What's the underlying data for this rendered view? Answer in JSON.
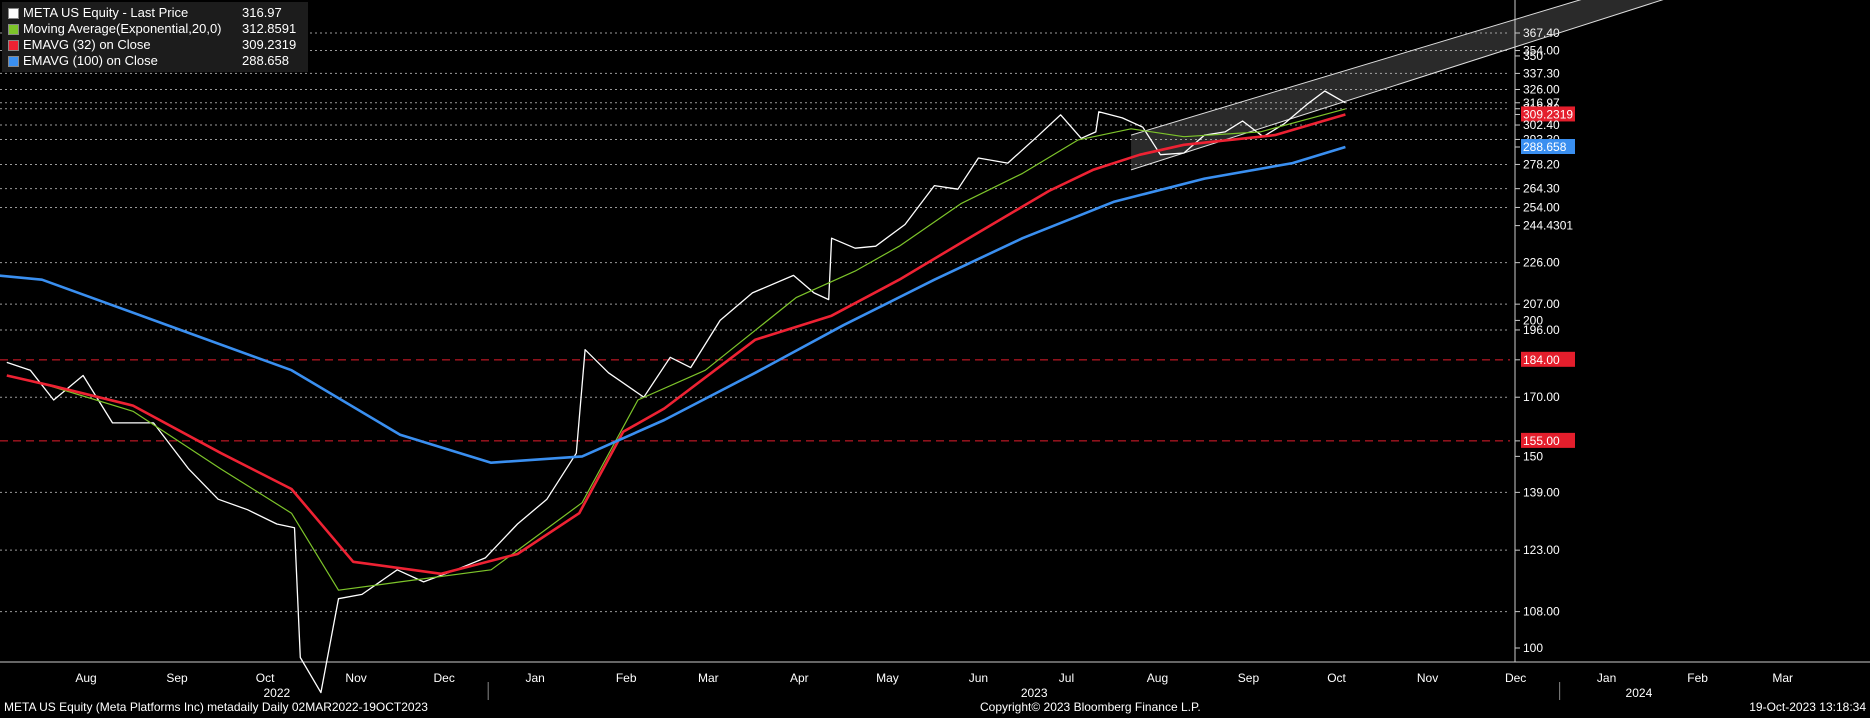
{
  "legend": [
    {
      "name": "META US Equity - Last Price",
      "value": "316.97",
      "color": "#ffffff"
    },
    {
      "name": "Moving Average(Exponential,20,0)",
      "value": "312.8591",
      "color": "#7dc42a"
    },
    {
      "name": "EMAVG (32)  on Close",
      "value": "309.2319",
      "color": "#ee2233"
    },
    {
      "name": "EMAVG (100)  on Close",
      "value": "288.658",
      "color": "#3a8ff0"
    }
  ],
  "footer": {
    "left": "META US Equity (Meta Platforms Inc) metadaily  Daily 02MAR2022-19OCT2023",
    "center": "Copyright© 2023 Bloomberg Finance L.P.",
    "right": "19-Oct-2023 13:18:34"
  },
  "chart_data": {
    "type": "line",
    "y_axis_labels": [
      "367.40",
      "354.00",
      "350",
      "337.30",
      "326.00",
      "316.97",
      "313.00",
      "309.2319",
      "302.40",
      "293.30",
      "288.658",
      "278.20",
      "264.30",
      "254.00",
      "244.4301",
      "226.00",
      "207.00",
      "200",
      "196.00",
      "184.00",
      "170.00",
      "155.00",
      "150",
      "139.00",
      "123.00",
      "108.00",
      "100"
    ],
    "y_axis_highlighted": [
      {
        "label": "184.00",
        "value": 184.0,
        "color": "#e41e2c"
      },
      {
        "label": "155.00",
        "value": 155.0,
        "color": "#e41e2c"
      },
      {
        "label": "309.2319",
        "value": 309.2319,
        "color": "#e41e2c"
      },
      {
        "label": "288.658",
        "value": 288.658,
        "color": "#3a8ff0"
      }
    ],
    "x_months": [
      "Aug",
      "Sep",
      "Oct",
      "Nov",
      "Dec",
      "Jan",
      "Feb",
      "Mar",
      "Apr",
      "May",
      "Jun",
      "Jul",
      "Aug",
      "Sep",
      "Oct",
      "Nov",
      "Dec",
      "Jan",
      "Feb",
      "Mar"
    ],
    "x_years": [
      "2022",
      "2023",
      "2024"
    ],
    "channel": {
      "lower_start": [
        "2023-08-07",
        275
      ],
      "lower_end": [
        "2024-03-01",
        415
      ],
      "upper_start": [
        "2023-08-07",
        296
      ],
      "upper_end": [
        "2024-03-01",
        436
      ]
    },
    "series": [
      {
        "name": "META US Equity - Last Price",
        "color": "#ffffff",
        "points": [
          [
            "2022-07-20",
            183
          ],
          [
            "2022-07-28",
            180
          ],
          [
            "2022-08-05",
            169
          ],
          [
            "2022-08-15",
            178
          ],
          [
            "2022-08-25",
            161
          ],
          [
            "2022-09-08",
            161
          ],
          [
            "2022-09-20",
            146
          ],
          [
            "2022-09-30",
            137
          ],
          [
            "2022-10-10",
            134
          ],
          [
            "2022-10-20",
            130
          ],
          [
            "2022-10-26",
            129
          ],
          [
            "2022-10-28",
            98
          ],
          [
            "2022-11-04",
            91
          ],
          [
            "2022-11-10",
            111
          ],
          [
            "2022-11-18",
            112
          ],
          [
            "2022-11-30",
            118
          ],
          [
            "2022-12-09",
            115
          ],
          [
            "2022-12-20",
            118
          ],
          [
            "2022-12-30",
            121
          ],
          [
            "2023-01-10",
            130
          ],
          [
            "2023-01-20",
            137
          ],
          [
            "2023-01-30",
            151
          ],
          [
            "2023-02-02",
            188
          ],
          [
            "2023-02-10",
            179
          ],
          [
            "2023-02-22",
            170
          ],
          [
            "2023-03-03",
            185
          ],
          [
            "2023-03-10",
            181
          ],
          [
            "2023-03-20",
            200
          ],
          [
            "2023-03-31",
            212
          ],
          [
            "2023-04-14",
            220
          ],
          [
            "2023-04-21",
            212
          ],
          [
            "2023-04-26",
            209
          ],
          [
            "2023-04-27",
            238
          ],
          [
            "2023-05-05",
            233
          ],
          [
            "2023-05-12",
            234
          ],
          [
            "2023-05-22",
            245
          ],
          [
            "2023-06-01",
            266
          ],
          [
            "2023-06-09",
            264
          ],
          [
            "2023-06-16",
            282
          ],
          [
            "2023-06-26",
            279
          ],
          [
            "2023-07-06",
            295
          ],
          [
            "2023-07-14",
            309
          ],
          [
            "2023-07-21",
            294
          ],
          [
            "2023-07-26",
            298
          ],
          [
            "2023-07-27",
            311
          ],
          [
            "2023-08-04",
            307
          ],
          [
            "2023-08-11",
            301
          ],
          [
            "2023-08-17",
            284
          ],
          [
            "2023-08-25",
            285
          ],
          [
            "2023-09-01",
            296
          ],
          [
            "2023-09-08",
            298
          ],
          [
            "2023-09-14",
            305
          ],
          [
            "2023-09-21",
            295
          ],
          [
            "2023-09-28",
            303
          ],
          [
            "2023-10-06",
            316
          ],
          [
            "2023-10-12",
            325
          ],
          [
            "2023-10-19",
            316.97
          ]
        ]
      },
      {
        "name": "Moving Average(Exponential,20,0)",
        "color": "#7dc42a",
        "points": [
          [
            "2022-08-01",
            175
          ],
          [
            "2022-09-01",
            165
          ],
          [
            "2022-10-01",
            146
          ],
          [
            "2022-10-25",
            133
          ],
          [
            "2022-11-10",
            113
          ],
          [
            "2022-12-01",
            115
          ],
          [
            "2023-01-01",
            118
          ],
          [
            "2023-02-01",
            136
          ],
          [
            "2023-02-20",
            169
          ],
          [
            "2023-03-15",
            180
          ],
          [
            "2023-04-15",
            210
          ],
          [
            "2023-05-05",
            222
          ],
          [
            "2023-05-20",
            234
          ],
          [
            "2023-06-10",
            256
          ],
          [
            "2023-07-01",
            273
          ],
          [
            "2023-07-20",
            293
          ],
          [
            "2023-08-07",
            300
          ],
          [
            "2023-08-25",
            295
          ],
          [
            "2023-09-20",
            298
          ],
          [
            "2023-10-19",
            312.86
          ]
        ]
      },
      {
        "name": "EMAVG (32)  on Close",
        "color": "#ee2233",
        "points": [
          [
            "2022-07-20",
            178
          ],
          [
            "2022-08-05",
            174
          ],
          [
            "2022-09-01",
            167
          ],
          [
            "2022-10-01",
            151
          ],
          [
            "2022-10-25",
            140
          ],
          [
            "2022-11-15",
            120
          ],
          [
            "2022-12-15",
            117
          ],
          [
            "2023-01-10",
            122
          ],
          [
            "2023-01-31",
            133
          ],
          [
            "2023-02-15",
            158
          ],
          [
            "2023-03-01",
            166
          ],
          [
            "2023-04-01",
            192
          ],
          [
            "2023-04-27",
            202
          ],
          [
            "2023-05-20",
            218
          ],
          [
            "2023-06-15",
            240
          ],
          [
            "2023-07-10",
            263
          ],
          [
            "2023-07-25",
            275
          ],
          [
            "2023-08-10",
            284
          ],
          [
            "2023-08-25",
            290
          ],
          [
            "2023-09-25",
            296
          ],
          [
            "2023-10-19",
            309.23
          ]
        ]
      },
      {
        "name": "EMAVG (100)  on Close",
        "color": "#3a8ff0",
        "points": [
          [
            "2022-03-01",
            238
          ],
          [
            "2022-06-01",
            226
          ],
          [
            "2022-08-01",
            218
          ],
          [
            "2022-09-15",
            197
          ],
          [
            "2022-10-25",
            180
          ],
          [
            "2022-12-01",
            157
          ],
          [
            "2023-01-01",
            148
          ],
          [
            "2023-02-01",
            150
          ],
          [
            "2023-03-01",
            162
          ],
          [
            "2023-04-01",
            179
          ],
          [
            "2023-05-01",
            198
          ],
          [
            "2023-06-01",
            218
          ],
          [
            "2023-07-01",
            238
          ],
          [
            "2023-08-01",
            257
          ],
          [
            "2023-09-01",
            270
          ],
          [
            "2023-10-01",
            279
          ],
          [
            "2023-10-19",
            288.66
          ]
        ]
      }
    ]
  }
}
